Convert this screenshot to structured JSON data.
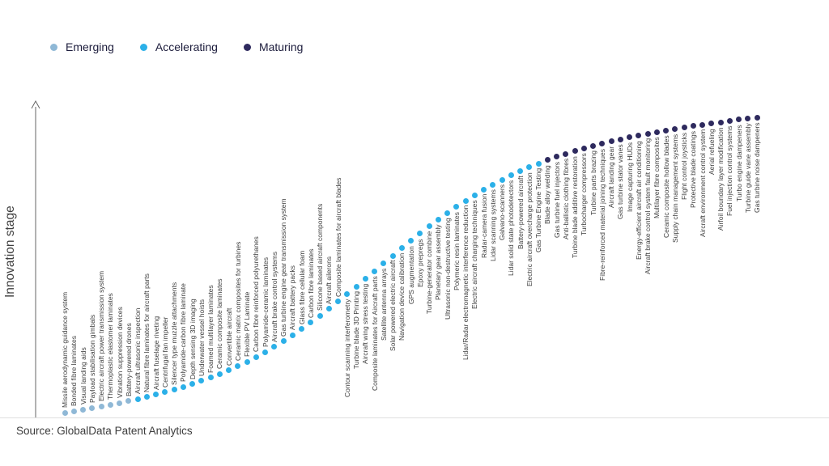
{
  "source": "Source: GlobalData Patent Analytics",
  "chart_data": {
    "type": "scatter",
    "title": "",
    "ylabel": "Innovation stage",
    "xlabel": "",
    "legend_position": "top-left",
    "stages": [
      "Emerging",
      "Accelerating",
      "Maturing"
    ],
    "stage_colors": {
      "Emerging": "#8fb8d6",
      "Accelerating": "#2bb0e8",
      "Maturing": "#2e2a5e"
    },
    "items": [
      {
        "label": "Missile aerodynamic guidance system",
        "stage": "Emerging"
      },
      {
        "label": "Bonded fibre laminates",
        "stage": "Emerging"
      },
      {
        "label": "Visual landing aids",
        "stage": "Emerging"
      },
      {
        "label": "Payload stabilisation gimbals",
        "stage": "Emerging"
      },
      {
        "label": "Electric aircraft power transmission system",
        "stage": "Emerging"
      },
      {
        "label": "Thermoplastic elastomer laminates",
        "stage": "Emerging"
      },
      {
        "label": "Vibration suppression devices",
        "stage": "Emerging"
      },
      {
        "label": "Battery-powered drones",
        "stage": "Emerging"
      },
      {
        "label": "Aircraft ultrasonic inspection",
        "stage": "Accelerating"
      },
      {
        "label": "Natural fibre laminates for aircraft parts",
        "stage": "Accelerating"
      },
      {
        "label": "Aircraft fuselage riveting",
        "stage": "Accelerating"
      },
      {
        "label": "Centrifugal fan impeller",
        "stage": "Accelerating"
      },
      {
        "label": "Silencer type muzzle attachments",
        "stage": "Accelerating"
      },
      {
        "label": "Polyamide-carbon fibre laminate",
        "stage": "Accelerating"
      },
      {
        "label": "Depth sensing 3D imaging",
        "stage": "Accelerating"
      },
      {
        "label": "Underwater vessel hoists",
        "stage": "Accelerating"
      },
      {
        "label": "Foamed multilayer laminates",
        "stage": "Accelerating"
      },
      {
        "label": "Ceramic composite laminates",
        "stage": "Accelerating"
      },
      {
        "label": "Convertible aircraft",
        "stage": "Accelerating"
      },
      {
        "label": "Ceramic matrix composites for turbines",
        "stage": "Accelerating"
      },
      {
        "label": "Flexible PV Laminate",
        "stage": "Accelerating"
      },
      {
        "label": "Carbon fibre reinforced polyurethanes",
        "stage": "Accelerating"
      },
      {
        "label": "Polyamide-ceramic laminates",
        "stage": "Accelerating"
      },
      {
        "label": "Aircraft brake control systems",
        "stage": "Accelerating"
      },
      {
        "label": "Gas turbine engine gear transmission system",
        "stage": "Accelerating"
      },
      {
        "label": "Aircraft battery packs",
        "stage": "Accelerating"
      },
      {
        "label": "Glass fibre cellular foam",
        "stage": "Accelerating"
      },
      {
        "label": "Carbon fibre laminates",
        "stage": "Accelerating"
      },
      {
        "label": "Silicone based aircraft components",
        "stage": "Accelerating"
      },
      {
        "label": "Aircraft ailerons",
        "stage": "Accelerating"
      },
      {
        "label": "Composite laminates for aircraft blades",
        "stage": "Accelerating"
      },
      {
        "label": "Contour scanning interferometry",
        "stage": "Accelerating"
      },
      {
        "label": "Turbine blade 3D Printing",
        "stage": "Accelerating"
      },
      {
        "label": "Aircraft wing stress testing",
        "stage": "Accelerating"
      },
      {
        "label": "Composite laminates for Aircraft parts",
        "stage": "Accelerating"
      },
      {
        "label": "Satellite antenna arrays",
        "stage": "Accelerating"
      },
      {
        "label": "Solar powered electric aircraft",
        "stage": "Accelerating"
      },
      {
        "label": "Navigation device calibration",
        "stage": "Accelerating"
      },
      {
        "label": "GPS augmentation",
        "stage": "Accelerating"
      },
      {
        "label": "Epoxy prepregs",
        "stage": "Accelerating"
      },
      {
        "label": "Turbine-generator combine",
        "stage": "Accelerating"
      },
      {
        "label": "Planetary gear assembly",
        "stage": "Accelerating"
      },
      {
        "label": "Ultrasonic non-destructive testing",
        "stage": "Accelerating"
      },
      {
        "label": "Polymeric resin laminates",
        "stage": "Accelerating"
      },
      {
        "label": "Lidar/Radar electromagnetic interference reduction",
        "stage": "Accelerating"
      },
      {
        "label": "Electric aircraft charging techniques",
        "stage": "Accelerating"
      },
      {
        "label": "Radar-camera fusion",
        "stage": "Accelerating"
      },
      {
        "label": "Lidar scanning systems",
        "stage": "Accelerating"
      },
      {
        "label": "Galvano-scanners",
        "stage": "Accelerating"
      },
      {
        "label": "Lidar solid state photodetectors",
        "stage": "Accelerating"
      },
      {
        "label": "Battery-powered aircraft",
        "stage": "Accelerating"
      },
      {
        "label": "Electric aircraft overcharge protection",
        "stage": "Accelerating"
      },
      {
        "label": "Gas Turbine Engine Testing",
        "stage": "Accelerating"
      },
      {
        "label": "Blade alloy welding",
        "stage": "Maturing"
      },
      {
        "label": "Gas turbine fuel injectors",
        "stage": "Maturing"
      },
      {
        "label": "Anti-ballistic clothing fibres",
        "stage": "Maturing"
      },
      {
        "label": "Turbine blade additive restoration",
        "stage": "Maturing"
      },
      {
        "label": "Turbocharger compressors",
        "stage": "Maturing"
      },
      {
        "label": "Turbine parts brazing",
        "stage": "Maturing"
      },
      {
        "label": "Fibre-reinforced material joining techniques",
        "stage": "Maturing"
      },
      {
        "label": "Aircraft landing gear",
        "stage": "Maturing"
      },
      {
        "label": "Gas turbine stator vanes",
        "stage": "Maturing"
      },
      {
        "label": "Image capturing HUDs",
        "stage": "Maturing"
      },
      {
        "label": "Energy-efficient aircraft air conditioning",
        "stage": "Maturing"
      },
      {
        "label": "Aircraft brake control system fault monitoring",
        "stage": "Maturing"
      },
      {
        "label": "Multilayer fibre composites",
        "stage": "Maturing"
      },
      {
        "label": "Ceramic composite hollow blades",
        "stage": "Maturing"
      },
      {
        "label": "Supply chain management systems",
        "stage": "Maturing"
      },
      {
        "label": "Flight control joysticks",
        "stage": "Maturing"
      },
      {
        "label": "Protective blade coatings",
        "stage": "Maturing"
      },
      {
        "label": "Aircraft environment control system",
        "stage": "Maturing"
      },
      {
        "label": "Aerial refueling",
        "stage": "Maturing"
      },
      {
        "label": "Airfoil boundary layer modification",
        "stage": "Maturing"
      },
      {
        "label": "Fuel injection control systems",
        "stage": "Maturing"
      },
      {
        "label": "Turbo engine dampeners",
        "stage": "Maturing"
      },
      {
        "label": "Turbine guide vane assembly",
        "stage": "Maturing"
      },
      {
        "label": "Gas turbine noise dampeners",
        "stage": "Maturing"
      }
    ]
  }
}
